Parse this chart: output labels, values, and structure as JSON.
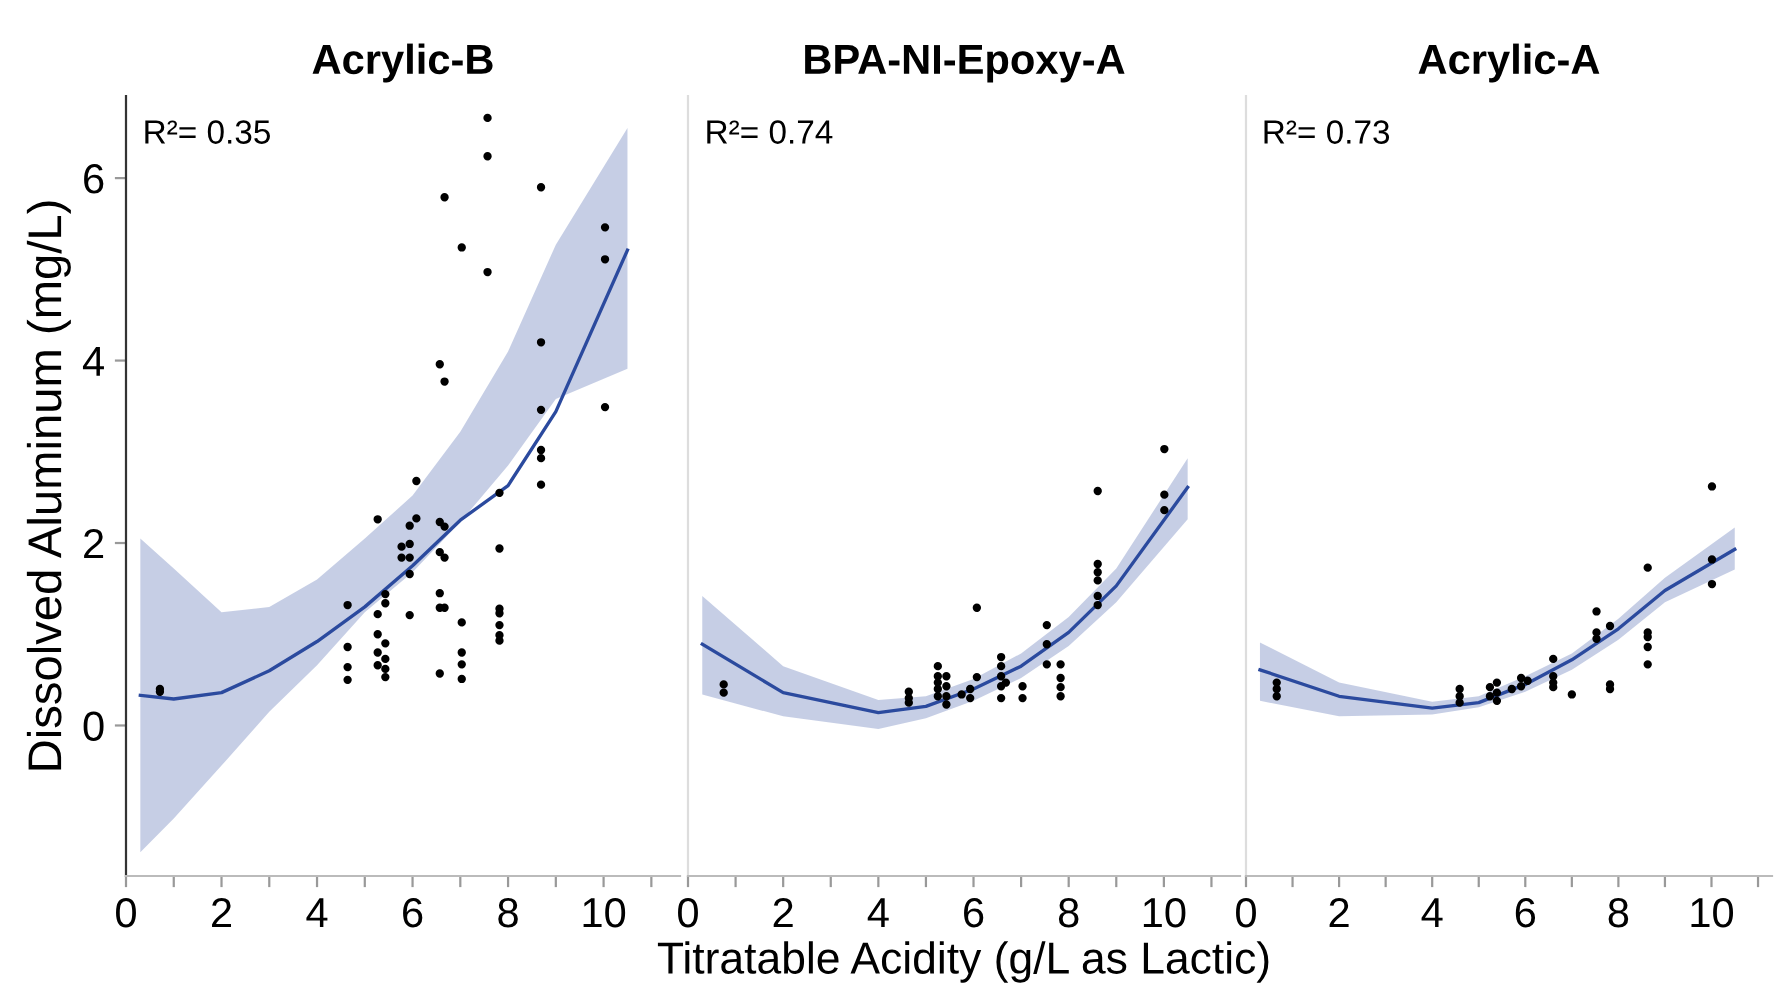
{
  "chart_data": [
    {
      "type": "scatter",
      "title": "Acrylic-B",
      "ylabel": "Dissolved Aluminum (mg/L)",
      "annotations": [
        "R²= 0.35"
      ],
      "xlim": [
        0,
        11.6
      ],
      "ylim": [
        -1.65,
        6.9
      ],
      "xticks": [
        0,
        {
          "value": 1,
          "label": null
        },
        2,
        {
          "value": 3,
          "label": null
        },
        4,
        {
          "value": 5,
          "label": null
        },
        6,
        {
          "value": 7,
          "label": null
        },
        8,
        {
          "value": 9,
          "label": null
        },
        10,
        {
          "value": 11,
          "label": null
        }
      ],
      "yticks": [
        0,
        2,
        4,
        6
      ],
      "grid": false,
      "series": [
        {
          "marker": "circle",
          "color": "#000000",
          "x": [
            0.71,
            0.71,
            4.64,
            4.64,
            4.64,
            4.64,
            5.27,
            5.27,
            5.27,
            5.27,
            5.27,
            5.43,
            5.43,
            5.43,
            5.43,
            5.43,
            5.43,
            5.77,
            5.77,
            5.94,
            5.94,
            5.94,
            5.94,
            5.94,
            6.08,
            6.08,
            6.57,
            6.57,
            6.57,
            6.57,
            6.57,
            6.57,
            6.67,
            6.67,
            6.67,
            6.67,
            6.67,
            7.03,
            7.03,
            7.03,
            7.03,
            7.03,
            7.57,
            7.57,
            7.57,
            7.82,
            7.82,
            7.82,
            7.82,
            7.82,
            7.82,
            7.82,
            8.69,
            8.69,
            8.69,
            8.69,
            8.69,
            8.69,
            10.03,
            10.03,
            10.03
          ],
          "values": [
            0.4,
            0.37,
            1.32,
            0.86,
            0.64,
            0.5,
            2.26,
            1.22,
            1.0,
            0.8,
            0.66,
            1.44,
            1.34,
            0.9,
            0.73,
            0.62,
            0.53,
            1.96,
            1.84,
            2.19,
            1.99,
            1.84,
            1.66,
            1.21,
            2.68,
            2.27,
            3.96,
            2.23,
            1.9,
            1.45,
            1.29,
            0.57,
            5.79,
            3.77,
            2.18,
            1.84,
            1.29,
            5.24,
            1.13,
            0.8,
            0.67,
            0.51,
            6.66,
            6.24,
            4.97,
            2.55,
            1.94,
            1.28,
            1.23,
            1.1,
            0.99,
            0.93,
            5.9,
            4.2,
            3.46,
            3.02,
            2.93,
            2.64,
            5.46,
            5.11,
            3.49
          ]
        },
        {
          "type": "line",
          "marker": "none",
          "color": "#2b4a9e",
          "x": [
            0.3,
            1,
            2,
            3,
            4,
            5,
            6,
            7,
            8,
            9,
            10.5
          ],
          "values": [
            0.33,
            0.29,
            0.36,
            0.6,
            0.92,
            1.3,
            1.75,
            2.25,
            2.63,
            3.44,
            5.21
          ],
          "lower": [
            -1.39,
            -1.02,
            -0.44,
            0.15,
            0.66,
            1.24,
            1.68,
            2.23,
            2.85,
            3.58,
            3.91
          ],
          "upper": [
            2.05,
            1.72,
            1.24,
            1.3,
            1.6,
            2.05,
            2.52,
            3.22,
            4.1,
            5.27,
            6.55
          ]
        }
      ]
    },
    {
      "type": "scatter",
      "title": "BPA-NI-Epoxy-A",
      "xlabel": "Titratable Acidity (g/L as Lactic)",
      "annotations": [
        "R²= 0.74"
      ],
      "xlim": [
        0,
        11.6
      ],
      "ylim": [
        -1.65,
        6.9
      ],
      "tick_labels": "x",
      "xticks": [
        0,
        {
          "value": 1,
          "label": null
        },
        2,
        {
          "value": 3,
          "label": null
        },
        4,
        {
          "value": 5,
          "label": null
        },
        6,
        {
          "value": 7,
          "label": null
        },
        8,
        {
          "value": 9,
          "label": null
        },
        10,
        {
          "value": 11,
          "label": null
        }
      ],
      "grid": false,
      "series": [
        {
          "marker": "circle",
          "color": "#000000",
          "x": [
            0.75,
            0.75,
            4.64,
            4.64,
            4.64,
            5.25,
            5.25,
            5.25,
            5.25,
            5.25,
            5.43,
            5.43,
            5.43,
            5.43,
            5.75,
            5.93,
            5.93,
            6.07,
            6.07,
            6.58,
            6.58,
            6.58,
            6.58,
            6.58,
            6.68,
            7.03,
            7.03,
            7.54,
            7.54,
            7.54,
            7.83,
            7.83,
            7.83,
            7.83,
            8.61,
            8.61,
            8.61,
            8.61,
            8.61,
            8.61,
            10.01,
            10.01,
            10.01
          ],
          "values": [
            0.45,
            0.36,
            0.37,
            0.3,
            0.25,
            0.65,
            0.54,
            0.47,
            0.4,
            0.32,
            0.54,
            0.43,
            0.32,
            0.23,
            0.34,
            0.4,
            0.3,
            1.29,
            0.53,
            0.75,
            0.65,
            0.54,
            0.43,
            0.3,
            0.47,
            0.43,
            0.3,
            1.1,
            0.89,
            0.67,
            0.67,
            0.52,
            0.42,
            0.32,
            2.57,
            1.77,
            1.68,
            1.59,
            1.42,
            1.32,
            3.03,
            2.53,
            2.36
          ]
        },
        {
          "type": "line",
          "marker": "none",
          "color": "#2b4a9e",
          "x": [
            0.3,
            2,
            4,
            5,
            6,
            7,
            8,
            9,
            10.5
          ],
          "values": [
            0.89,
            0.36,
            0.14,
            0.21,
            0.4,
            0.65,
            1.02,
            1.53,
            2.61
          ],
          "lower": [
            0.34,
            0.1,
            -0.04,
            0.08,
            0.27,
            0.52,
            0.87,
            1.35,
            2.26
          ],
          "upper": [
            1.42,
            0.65,
            0.28,
            0.32,
            0.51,
            0.79,
            1.19,
            1.72,
            2.93
          ]
        }
      ]
    },
    {
      "type": "scatter",
      "title": "Acrylic-A",
      "annotations": [
        "R²= 0.73"
      ],
      "xlim": [
        0,
        11.3
      ],
      "ylim": [
        -1.65,
        6.9
      ],
      "tick_labels": "x",
      "xticks": [
        0,
        {
          "value": 1,
          "label": null
        },
        2,
        {
          "value": 3,
          "label": null
        },
        4,
        {
          "value": 5,
          "label": null
        },
        6,
        {
          "value": 7,
          "label": null
        },
        8,
        {
          "value": 9,
          "label": null
        },
        10,
        {
          "value": 11,
          "label": null
        }
      ],
      "grid": false,
      "series": [
        {
          "marker": "circle",
          "color": "#000000",
          "x": [
            0.66,
            0.66,
            0.66,
            4.59,
            4.59,
            4.59,
            5.24,
            5.24,
            5.39,
            5.39,
            5.39,
            5.71,
            5.91,
            5.91,
            6.05,
            6.6,
            6.6,
            6.6,
            6.6,
            7.0,
            7.53,
            7.53,
            7.53,
            7.82,
            7.82,
            7.82,
            8.63,
            8.63,
            8.63,
            8.63,
            8.63,
            10.01,
            10.01,
            10.01
          ],
          "values": [
            0.47,
            0.4,
            0.32,
            0.4,
            0.32,
            0.25,
            0.42,
            0.32,
            0.47,
            0.36,
            0.27,
            0.4,
            0.52,
            0.43,
            0.49,
            0.73,
            0.54,
            0.47,
            0.42,
            0.34,
            1.25,
            1.02,
            0.95,
            1.09,
            0.45,
            0.4,
            1.73,
            1.02,
            0.97,
            0.86,
            0.67,
            2.62,
            1.82,
            1.55
          ]
        },
        {
          "type": "line",
          "marker": "none",
          "color": "#2b4a9e",
          "x": [
            0.3,
            2,
            4,
            5,
            6,
            7,
            8,
            9,
            10.5
          ],
          "values": [
            0.61,
            0.32,
            0.19,
            0.25,
            0.45,
            0.72,
            1.06,
            1.48,
            1.93
          ],
          "lower": [
            0.27,
            0.1,
            0.12,
            0.2,
            0.37,
            0.61,
            0.94,
            1.35,
            1.71
          ],
          "upper": [
            0.91,
            0.47,
            0.26,
            0.32,
            0.54,
            0.79,
            1.17,
            1.62,
            2.17
          ]
        }
      ]
    }
  ]
}
